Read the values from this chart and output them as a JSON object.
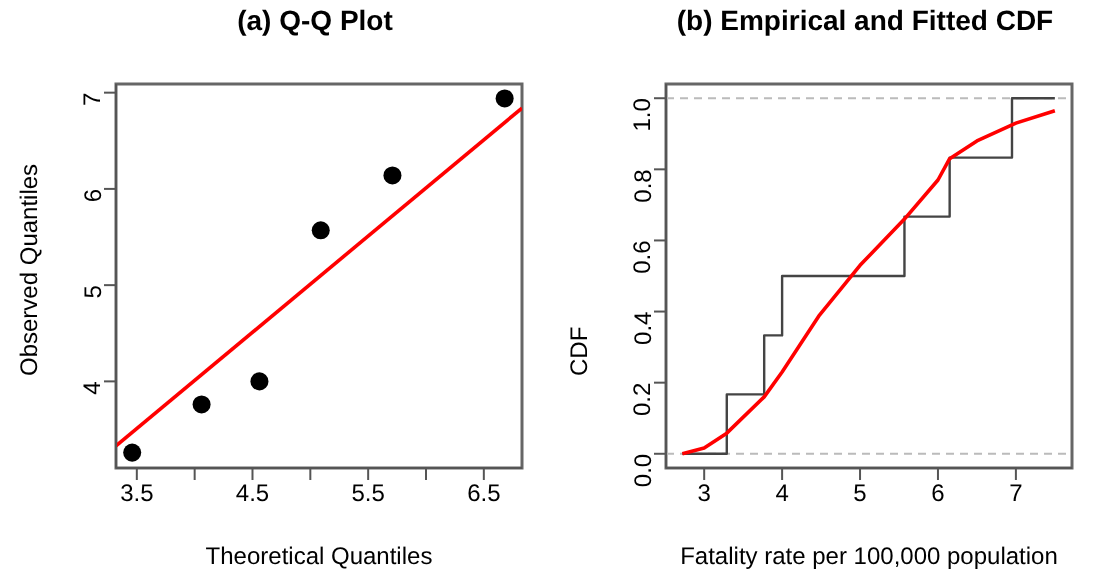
{
  "chart_data": [
    {
      "type": "scatter",
      "title": "(a) Q-Q Plot",
      "xlabel": "Theoretical Quantiles",
      "ylabel": "Observed Quantiles",
      "xlim": [
        3.32,
        6.83
      ],
      "ylim": [
        3.1,
        7.09
      ],
      "xticks": [
        3.5,
        {
          "value": 4,
          "label": null
        },
        4.5,
        {
          "value": 5,
          "label": null
        },
        5.5,
        {
          "value": 6,
          "label": null
        },
        6.5
      ],
      "yticks": [
        4,
        5,
        6,
        7
      ],
      "grid": false,
      "series": [
        {
          "marker": "circle",
          "color": "#000000",
          "x": [
            3.46,
            4.06,
            4.56,
            5.09,
            5.71,
            6.68
          ],
          "values": [
            3.26,
            3.76,
            4.0,
            5.57,
            6.14,
            6.94
          ]
        },
        {
          "type": "line",
          "color": "#ff0000",
          "x": [
            3.32,
            6.83
          ],
          "values": [
            3.33,
            6.84
          ]
        }
      ]
    },
    {
      "type": "line",
      "title": "(b) Empirical and Fitted CDF",
      "xlabel": "Fatality rate per 100,000 population",
      "ylabel": "CDF",
      "xlim": [
        2.51,
        7.72
      ],
      "ylim": [
        -0.04,
        1.04
      ],
      "xticks": [
        3,
        4,
        5,
        6,
        7
      ],
      "yticks": [
        {
          "value": 0,
          "label": "0.0"
        },
        {
          "value": 0.2,
          "label": "0.2"
        },
        {
          "value": 0.4,
          "label": "0.4"
        },
        {
          "value": 0.6,
          "label": "0.6"
        },
        {
          "value": 0.8,
          "label": "0.8"
        },
        {
          "value": 1,
          "label": "1.0"
        }
      ],
      "grid": false,
      "ref_lines": [
        {
          "axis": "y",
          "value": 0,
          "color": "#bbbbbb",
          "line_style": "dashed"
        },
        {
          "axis": "y",
          "value": 1,
          "color": "#bbbbbb",
          "line_style": "dashed"
        }
      ],
      "series": [
        {
          "type": "step",
          "color": "#444444",
          "x": [
            2.72,
            3.29,
            3.77,
            4.0,
            5.57,
            6.15,
            6.95,
            7.5
          ],
          "values": [
            0,
            0.167,
            0.333,
            0.5,
            0.667,
            0.833,
            1,
            1
          ]
        },
        {
          "color": "#ff0000",
          "x": [
            2.72,
            3.0,
            3.29,
            3.77,
            4.0,
            4.48,
            5.0,
            5.57,
            6.0,
            6.15,
            6.5,
            7.0,
            7.5
          ],
          "values": [
            0,
            0.016,
            0.058,
            0.16,
            0.23,
            0.39,
            0.53,
            0.66,
            0.77,
            0.83,
            0.88,
            0.93,
            0.965
          ]
        }
      ]
    }
  ]
}
